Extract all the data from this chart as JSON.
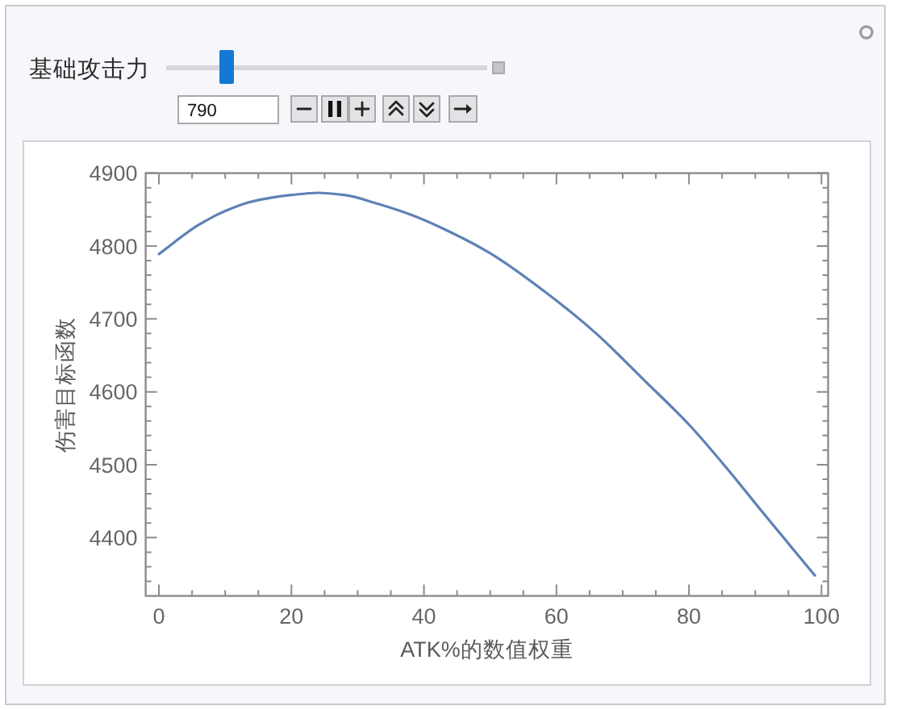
{
  "chart_data": {
    "type": "line",
    "xlabel": "ATK%的数值权重",
    "ylabel": "伤害目标函数",
    "annotations": [
      "基础攻击力",
      "790"
    ],
    "x": [
      0,
      6,
      10,
      14,
      20,
      24,
      28,
      33,
      38,
      44,
      50,
      58,
      66,
      73,
      80,
      86,
      91,
      99
    ],
    "values": [
      4789,
      4829,
      4848,
      4861,
      4870,
      4873,
      4870,
      4858,
      4843,
      4819,
      4790,
      4739,
      4680,
      4618,
      4555,
      4492,
      4436,
      4348
    ],
    "color": "#5e81b5",
    "line_style": "solid",
    "xlim": [
      -2,
      101
    ],
    "ylim": [
      4320,
      4900
    ],
    "xticks": [
      0,
      {
        "value": 5,
        "label": null
      },
      {
        "value": 10,
        "label": null
      },
      {
        "value": 15,
        "label": null
      },
      20,
      {
        "value": 25,
        "label": null
      },
      {
        "value": 30,
        "label": null
      },
      {
        "value": 35,
        "label": null
      },
      40,
      {
        "value": 45,
        "label": null
      },
      {
        "value": 50,
        "label": null
      },
      {
        "value": 55,
        "label": null
      },
      60,
      {
        "value": 65,
        "label": null
      },
      {
        "value": 70,
        "label": null
      },
      {
        "value": 75,
        "label": null
      },
      80,
      {
        "value": 85,
        "label": null
      },
      {
        "value": 90,
        "label": null
      },
      {
        "value": 95,
        "label": null
      },
      100
    ],
    "yticks": [
      {
        "value": 4340,
        "label": null
      },
      {
        "value": 4360,
        "label": null
      },
      {
        "value": 4380,
        "label": null
      },
      4400,
      {
        "value": 4420,
        "label": null
      },
      {
        "value": 4440,
        "label": null
      },
      {
        "value": 4460,
        "label": null
      },
      {
        "value": 4480,
        "label": null
      },
      4500,
      {
        "value": 4520,
        "label": null
      },
      {
        "value": 4540,
        "label": null
      },
      {
        "value": 4560,
        "label": null
      },
      {
        "value": 4580,
        "label": null
      },
      4600,
      {
        "value": 4620,
        "label": null
      },
      {
        "value": 4640,
        "label": null
      },
      {
        "value": 4660,
        "label": null
      },
      {
        "value": 4680,
        "label": null
      },
      4700,
      {
        "value": 4720,
        "label": null
      },
      {
        "value": 4740,
        "label": null
      },
      {
        "value": 4760,
        "label": null
      },
      {
        "value": 4780,
        "label": null
      },
      4800,
      {
        "value": 4820,
        "label": null
      },
      {
        "value": 4840,
        "label": null
      },
      {
        "value": 4860,
        "label": null
      },
      {
        "value": 4880,
        "label": null
      },
      4900
    ]
  }
}
